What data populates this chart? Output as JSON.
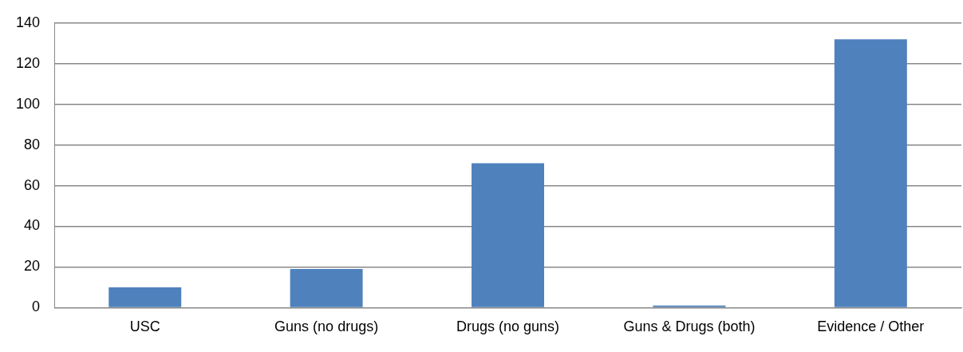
{
  "chart_data": {
    "type": "bar",
    "categories": [
      "USC",
      "Guns (no drugs)",
      "Drugs (no guns)",
      "Guns & Drugs (both)",
      "Evidence / Other"
    ],
    "values": [
      10,
      19,
      71,
      1,
      132
    ],
    "color": "#4f81bd",
    "ylim": [
      0,
      140
    ],
    "yticks": [
      0,
      20,
      40,
      60,
      80,
      100,
      120,
      140
    ],
    "grid": "y",
    "legend": false
  }
}
